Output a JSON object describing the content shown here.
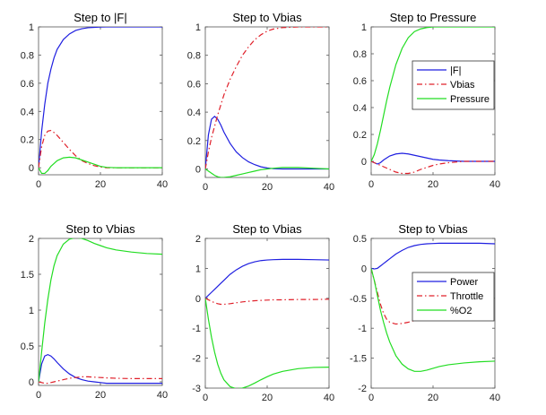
{
  "colors": {
    "F": "#1f1fe0",
    "Vbias": "#e0202a",
    "Pressure": "#22dd22",
    "Power": "#1f1fe0",
    "Throttle": "#e0202a",
    "O2": "#22dd22",
    "axis": "#555555"
  },
  "chart_data": [
    {
      "type": "line",
      "title": "Step to |F|",
      "xlim": [
        0,
        40
      ],
      "ylim": [
        -0.05,
        1.0
      ],
      "xticks": [
        0,
        20,
        40
      ],
      "yticks": [
        0,
        0.2,
        0.4,
        0.6,
        0.8,
        1
      ],
      "ytick_labels": [
        "0",
        "0.2",
        "0.4",
        "0.6",
        "0.8",
        "1"
      ],
      "legend": null,
      "series": [
        {
          "key": "F",
          "style": "solid",
          "x": [
            0,
            1,
            2,
            3,
            4,
            5,
            6,
            8,
            10,
            12,
            14,
            16,
            18,
            20,
            22,
            25,
            30,
            35,
            40
          ],
          "y": [
            0,
            0.26,
            0.45,
            0.6,
            0.7,
            0.78,
            0.84,
            0.91,
            0.95,
            0.975,
            0.987,
            0.994,
            0.997,
            0.999,
            1,
            1,
            1,
            1,
            1
          ]
        },
        {
          "key": "Vbias",
          "style": "dashdot",
          "x": [
            0,
            1,
            2,
            3,
            4,
            5,
            6,
            8,
            10,
            12,
            14,
            16,
            18,
            20,
            22,
            25,
            30,
            35,
            40
          ],
          "y": [
            0,
            0.15,
            0.23,
            0.26,
            0.265,
            0.25,
            0.23,
            0.18,
            0.13,
            0.085,
            0.05,
            0.03,
            0.015,
            0.005,
            0,
            0,
            0,
            0,
            0
          ]
        },
        {
          "key": "Pressure",
          "style": "solid",
          "x": [
            0,
            1,
            2,
            3,
            4,
            5,
            6,
            8,
            10,
            12,
            14,
            16,
            18,
            20,
            22,
            25,
            30,
            35,
            40
          ],
          "y": [
            0,
            -0.04,
            -0.04,
            -0.02,
            0.01,
            0.03,
            0.05,
            0.07,
            0.075,
            0.07,
            0.055,
            0.04,
            0.025,
            0.01,
            0.003,
            0,
            0,
            0,
            0
          ]
        }
      ]
    },
    {
      "type": "line",
      "title": "Step to Vbias",
      "xlim": [
        0,
        40
      ],
      "ylim": [
        -0.06,
        1.0
      ],
      "xticks": [
        0,
        20,
        40
      ],
      "yticks": [
        0,
        0.2,
        0.4,
        0.6,
        0.8,
        1
      ],
      "ytick_labels": [
        "0",
        "0.2",
        "0.4",
        "0.6",
        "0.8",
        "1"
      ],
      "legend": null,
      "series": [
        {
          "key": "F",
          "style": "solid",
          "x": [
            0,
            1,
            2,
            3,
            4,
            5,
            6,
            8,
            10,
            12,
            14,
            16,
            18,
            20,
            22,
            25,
            30,
            35,
            40
          ],
          "y": [
            0,
            0.24,
            0.35,
            0.37,
            0.35,
            0.31,
            0.26,
            0.18,
            0.12,
            0.08,
            0.05,
            0.03,
            0.015,
            0.007,
            0.002,
            0,
            0,
            0,
            0
          ]
        },
        {
          "key": "Vbias",
          "style": "dashdot",
          "x": [
            0,
            1,
            2,
            3,
            4,
            5,
            6,
            8,
            10,
            12,
            14,
            16,
            18,
            20,
            22,
            25,
            30,
            35,
            40
          ],
          "y": [
            0,
            0.12,
            0.22,
            0.3,
            0.38,
            0.45,
            0.52,
            0.63,
            0.72,
            0.8,
            0.86,
            0.91,
            0.945,
            0.97,
            0.985,
            0.995,
            1,
            1,
            1
          ]
        },
        {
          "key": "Pressure",
          "style": "solid",
          "x": [
            0,
            1,
            2,
            3,
            4,
            5,
            6,
            8,
            10,
            12,
            14,
            16,
            18,
            20,
            22,
            25,
            30,
            35,
            40
          ],
          "y": [
            0,
            -0.015,
            -0.03,
            -0.045,
            -0.055,
            -0.06,
            -0.06,
            -0.055,
            -0.045,
            -0.035,
            -0.025,
            -0.015,
            -0.005,
            0,
            0.005,
            0.01,
            0.01,
            0.005,
            0
          ]
        }
      ]
    },
    {
      "type": "line",
      "title": "Step to Pressure",
      "xlim": [
        0,
        40
      ],
      "ylim": [
        -0.1,
        1.0
      ],
      "xticks": [
        0,
        20,
        40
      ],
      "yticks": [
        0,
        0.2,
        0.4,
        0.6,
        0.8,
        1
      ],
      "ytick_labels": [
        "0",
        "0.2",
        "0.4",
        "0.6",
        "0.8",
        "1"
      ],
      "legend": {
        "position": "top-right",
        "entries": [
          "|F|",
          "Vbias",
          "Pressure"
        ],
        "keys": [
          "F",
          "Vbias",
          "Pressure"
        ],
        "styles": [
          "solid",
          "dashdot",
          "solid"
        ]
      },
      "series": [
        {
          "key": "F",
          "style": "solid",
          "x": [
            0,
            1,
            2,
            3,
            4,
            5,
            6,
            8,
            10,
            12,
            14,
            16,
            18,
            20,
            22,
            25,
            30,
            35,
            40
          ],
          "y": [
            0,
            -0.01,
            -0.02,
            -0.01,
            0.01,
            0.025,
            0.04,
            0.055,
            0.06,
            0.055,
            0.045,
            0.035,
            0.025,
            0.015,
            0.01,
            0.005,
            0,
            0,
            0
          ]
        },
        {
          "key": "Vbias",
          "style": "dashdot",
          "x": [
            0,
            1,
            2,
            3,
            4,
            5,
            6,
            8,
            10,
            12,
            14,
            16,
            18,
            20,
            22,
            25,
            30,
            35,
            40
          ],
          "y": [
            0,
            -0.01,
            -0.02,
            -0.03,
            -0.04,
            -0.05,
            -0.06,
            -0.08,
            -0.09,
            -0.09,
            -0.08,
            -0.06,
            -0.045,
            -0.03,
            -0.02,
            -0.01,
            0,
            0,
            0
          ]
        },
        {
          "key": "Pressure",
          "style": "solid",
          "x": [
            0,
            1,
            2,
            3,
            4,
            5,
            6,
            8,
            10,
            12,
            14,
            16,
            18,
            20,
            22,
            25,
            30,
            35,
            40
          ],
          "y": [
            0,
            0.05,
            0.13,
            0.23,
            0.34,
            0.45,
            0.55,
            0.72,
            0.84,
            0.92,
            0.965,
            0.985,
            0.995,
            1,
            1,
            1,
            1,
            1,
            1
          ]
        }
      ]
    },
    {
      "type": "line",
      "title": "Step to Vbias",
      "xlim": [
        0,
        40
      ],
      "ylim": [
        -0.05,
        2.0
      ],
      "xticks": [
        0,
        20,
        40
      ],
      "yticks": [
        0,
        0.5,
        1,
        1.5,
        2
      ],
      "ytick_labels": [
        "0",
        "0.5",
        "1",
        "1.5",
        "2"
      ],
      "legend": null,
      "series": [
        {
          "key": "F",
          "style": "solid",
          "x": [
            0,
            1,
            2,
            3,
            4,
            5,
            6,
            8,
            10,
            12,
            14,
            16,
            18,
            20,
            22,
            25,
            30,
            35,
            40
          ],
          "y": [
            0,
            0.25,
            0.36,
            0.38,
            0.36,
            0.32,
            0.27,
            0.18,
            0.11,
            0.06,
            0.03,
            0.01,
            0,
            -0.01,
            -0.02,
            -0.02,
            -0.02,
            -0.02,
            -0.02
          ]
        },
        {
          "key": "Vbias",
          "style": "dashdot",
          "x": [
            0,
            1,
            2,
            3,
            4,
            5,
            6,
            8,
            10,
            12,
            14,
            16,
            18,
            20,
            22,
            25,
            30,
            35,
            40
          ],
          "y": [
            0,
            -0.01,
            -0.02,
            -0.02,
            -0.01,
            0,
            0.01,
            0.03,
            0.05,
            0.06,
            0.07,
            0.07,
            0.065,
            0.06,
            0.055,
            0.05,
            0.045,
            0.045,
            0.045
          ]
        },
        {
          "key": "Pressure",
          "style": "solid",
          "x": [
            0,
            1,
            2,
            3,
            4,
            5,
            6,
            8,
            10,
            12,
            14,
            16,
            18,
            20,
            22,
            25,
            30,
            35,
            40
          ],
          "y": [
            0,
            0.42,
            0.82,
            1.15,
            1.42,
            1.62,
            1.76,
            1.92,
            1.99,
            2.01,
            2.0,
            1.97,
            1.93,
            1.9,
            1.87,
            1.84,
            1.81,
            1.79,
            1.78
          ]
        }
      ]
    },
    {
      "type": "line",
      "title": "Step to Vbias",
      "xlim": [
        0,
        40
      ],
      "ylim": [
        -3,
        2
      ],
      "xticks": [
        0,
        20,
        40
      ],
      "yticks": [
        -3,
        -2,
        -1,
        0,
        1,
        2
      ],
      "ytick_labels": [
        "-3",
        "-2",
        "-1",
        "0",
        "1",
        "2"
      ],
      "legend": null,
      "series": [
        {
          "key": "Power",
          "style": "solid",
          "x": [
            0,
            1,
            2,
            3,
            4,
            5,
            6,
            8,
            10,
            12,
            14,
            16,
            18,
            20,
            22,
            25,
            30,
            35,
            40
          ],
          "y": [
            0,
            0.1,
            0.2,
            0.3,
            0.4,
            0.5,
            0.6,
            0.8,
            0.95,
            1.07,
            1.16,
            1.22,
            1.26,
            1.28,
            1.29,
            1.3,
            1.3,
            1.29,
            1.28
          ]
        },
        {
          "key": "Throttle",
          "style": "dashdot",
          "x": [
            0,
            1,
            2,
            3,
            4,
            5,
            6,
            8,
            10,
            12,
            14,
            16,
            18,
            20,
            22,
            25,
            30,
            35,
            40
          ],
          "y": [
            0,
            -0.05,
            -0.1,
            -0.15,
            -0.18,
            -0.2,
            -0.2,
            -0.18,
            -0.15,
            -0.12,
            -0.1,
            -0.08,
            -0.07,
            -0.06,
            -0.05,
            -0.05,
            -0.04,
            -0.04,
            -0.03
          ]
        },
        {
          "key": "O2",
          "style": "solid",
          "x": [
            0,
            1,
            2,
            3,
            4,
            5,
            6,
            8,
            10,
            12,
            14,
            16,
            18,
            20,
            22,
            25,
            30,
            35,
            40
          ],
          "y": [
            0,
            -0.7,
            -1.3,
            -1.8,
            -2.2,
            -2.5,
            -2.72,
            -2.95,
            -3.02,
            -3.0,
            -2.93,
            -2.83,
            -2.72,
            -2.62,
            -2.53,
            -2.44,
            -2.35,
            -2.31,
            -2.3
          ]
        }
      ]
    },
    {
      "type": "line",
      "title": "Step to Vbias",
      "xlim": [
        0,
        40
      ],
      "ylim": [
        -2,
        0.5
      ],
      "xticks": [
        0,
        20,
        40
      ],
      "yticks": [
        -2,
        -1.5,
        -1,
        -0.5,
        0,
        0.5
      ],
      "ytick_labels": [
        "-2",
        "-1.5",
        "-1",
        "-0.5",
        "0",
        "0.5"
      ],
      "legend": {
        "position": "top-right",
        "entries": [
          "Power",
          "Throttle",
          "%O2"
        ],
        "keys": [
          "Power",
          "Throttle",
          "O2"
        ],
        "styles": [
          "solid",
          "dashdot",
          "solid"
        ]
      },
      "series": [
        {
          "key": "Power",
          "style": "solid",
          "x": [
            0,
            1,
            2,
            3,
            4,
            5,
            6,
            8,
            10,
            12,
            14,
            16,
            18,
            20,
            22,
            25,
            30,
            35,
            40
          ],
          "y": [
            0,
            -0.01,
            0,
            0.04,
            0.08,
            0.12,
            0.16,
            0.24,
            0.3,
            0.35,
            0.38,
            0.4,
            0.41,
            0.415,
            0.42,
            0.42,
            0.42,
            0.42,
            0.41
          ]
        },
        {
          "key": "Throttle",
          "style": "dashdot",
          "x": [
            0,
            1,
            2,
            3,
            4,
            5,
            6,
            8,
            10,
            12,
            14,
            16,
            18,
            20,
            22,
            25,
            30,
            35,
            40
          ],
          "y": [
            0,
            -0.2,
            -0.4,
            -0.6,
            -0.75,
            -0.85,
            -0.9,
            -0.93,
            -0.92,
            -0.9,
            -0.87,
            -0.85,
            -0.84,
            -0.83,
            -0.83,
            -0.82,
            -0.82,
            -0.81,
            -0.81
          ]
        },
        {
          "key": "O2",
          "style": "solid",
          "x": [
            0,
            1,
            2,
            3,
            4,
            5,
            6,
            8,
            10,
            12,
            14,
            16,
            18,
            20,
            22,
            25,
            30,
            35,
            40
          ],
          "y": [
            0,
            -0.2,
            -0.45,
            -0.7,
            -0.9,
            -1.08,
            -1.23,
            -1.46,
            -1.6,
            -1.68,
            -1.72,
            -1.72,
            -1.7,
            -1.67,
            -1.64,
            -1.61,
            -1.58,
            -1.56,
            -1.55
          ]
        }
      ]
    }
  ]
}
